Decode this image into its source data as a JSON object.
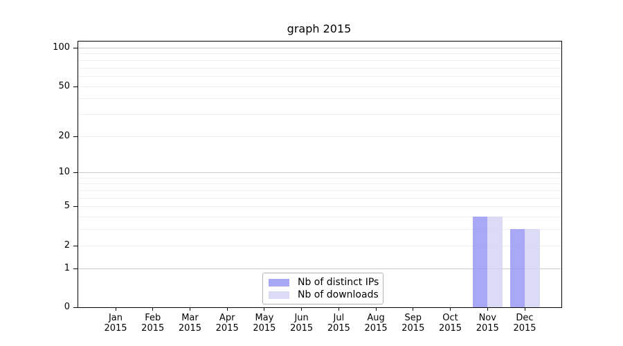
{
  "chart_data": {
    "type": "bar",
    "title": "graph 2015",
    "categories": [
      "Jan",
      "Feb",
      "Mar",
      "Apr",
      "May",
      "Jun",
      "Jul",
      "Aug",
      "Sep",
      "Oct",
      "Nov",
      "Dec"
    ],
    "x_tick_second_line": "2015",
    "series": [
      {
        "name": "Nb of distinct IPs",
        "color": "rgba(153,153,244,0.85)",
        "values": [
          0,
          0,
          0,
          0,
          0,
          0,
          0,
          0,
          0,
          0,
          4,
          3
        ]
      },
      {
        "name": "Nb of downloads",
        "color": "rgba(213,213,245,0.85)",
        "values": [
          0,
          0,
          0,
          0,
          0,
          0,
          0,
          0,
          0,
          0,
          4,
          3
        ]
      }
    ],
    "y_axis": {
      "scale": "log1p",
      "tick_labels": [
        0,
        1,
        2,
        5,
        10,
        20,
        50,
        100
      ],
      "minor_gridlines": [
        2,
        3,
        4,
        5,
        6,
        7,
        8,
        9,
        20,
        30,
        40,
        50,
        60,
        70,
        80,
        90
      ],
      "major_gridlines": [
        1,
        10,
        100
      ],
      "top_value": 100
    },
    "ylim": [
      0,
      100
    ],
    "grid": true,
    "legend_position": "bottom-center"
  },
  "styles": {
    "background": "#ffffff",
    "text_color": "#1a1a1a",
    "axis_color": "#000000",
    "minor_grid_color": "#ededed",
    "major_grid_color": "#c9c9c9",
    "legend_border_color": "#b3b3b3"
  }
}
